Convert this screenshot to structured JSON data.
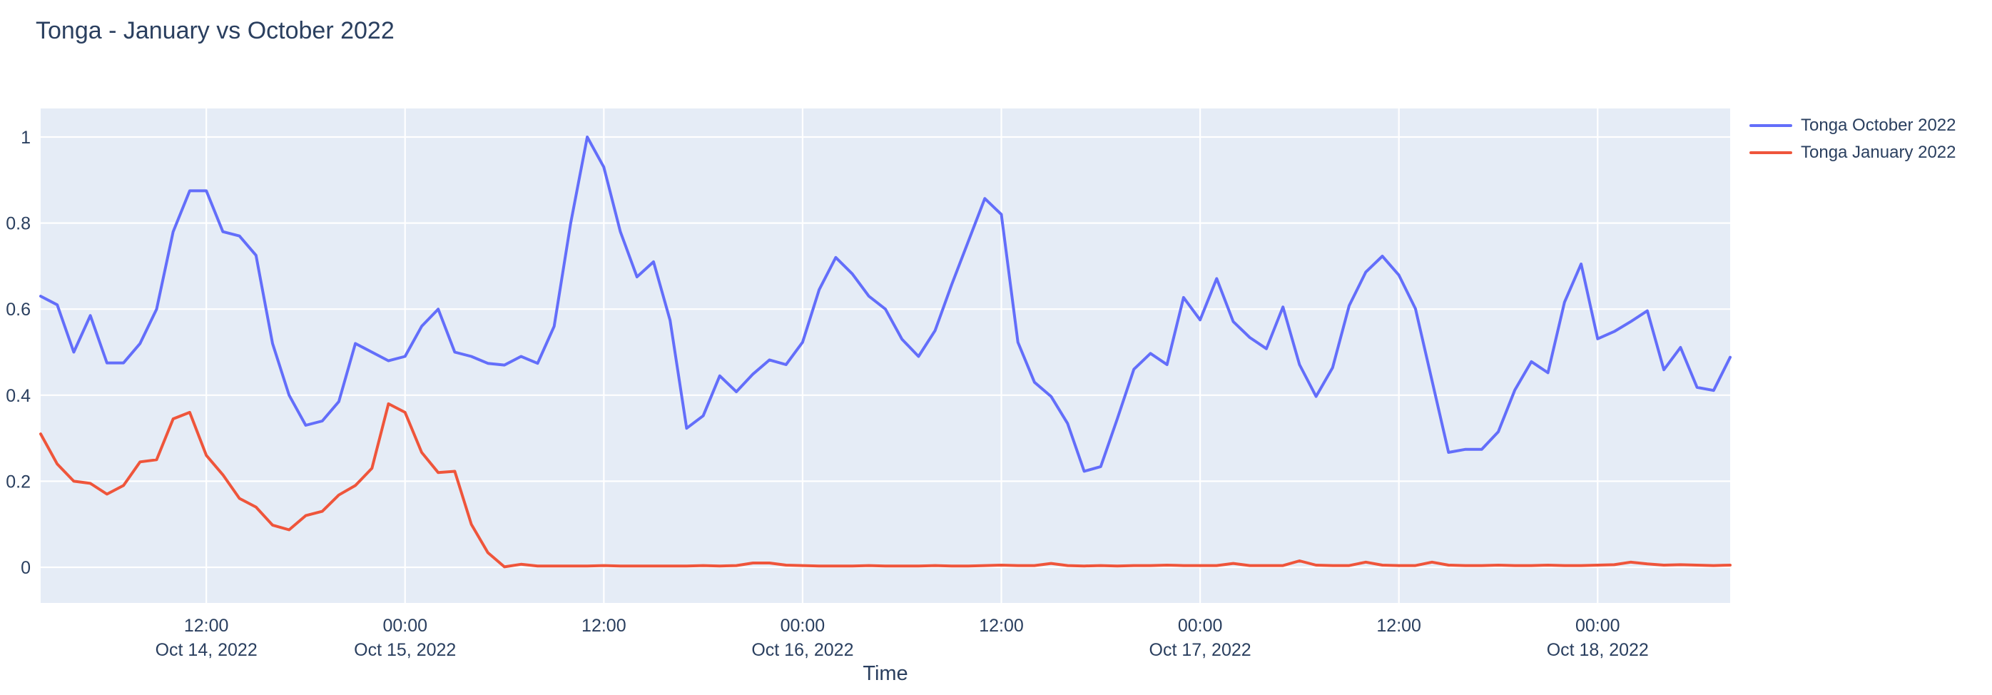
{
  "figure": {
    "title": "Tonga - January vs October 2022",
    "x_axis_title": "Time"
  },
  "legend": {
    "items": [
      {
        "label": "Tonga October 2022",
        "color": "#636EFA"
      },
      {
        "label": "Tonga January 2022",
        "color": "#EF553B"
      }
    ]
  },
  "colors": {
    "page_background": "#FFFFFF",
    "plot_background": "#E5ECF6",
    "gridline": "#FFFFFF",
    "text": "#2A3F5F",
    "series_october": "#636EFA",
    "series_january": "#EF553B"
  },
  "chart_data": {
    "type": "line",
    "title": "Tonga - January vs October 2022",
    "xlabel": "Time",
    "ylabel": "",
    "x_unit": "hourly samples",
    "x_start": "2022-10-14 02:00",
    "x_end": "2022-10-18 08:00",
    "total_hours": 102,
    "ylim": [
      -0.083,
      1.066
    ],
    "yticks": [
      0,
      0.2,
      0.4,
      0.6,
      0.8,
      1
    ],
    "grid": true,
    "legend_position": "top-right-outside",
    "xticks": [
      {
        "hour_offset": 10,
        "time": "12:00",
        "date": "Oct 14, 2022"
      },
      {
        "hour_offset": 22,
        "time": "00:00",
        "date": "Oct 15, 2022"
      },
      {
        "hour_offset": 34,
        "time": "12:00",
        "date": ""
      },
      {
        "hour_offset": 46,
        "time": "00:00",
        "date": "Oct 16, 2022"
      },
      {
        "hour_offset": 58,
        "time": "12:00",
        "date": ""
      },
      {
        "hour_offset": 70,
        "time": "00:00",
        "date": "Oct 17, 2022"
      },
      {
        "hour_offset": 82,
        "time": "12:00",
        "date": ""
      },
      {
        "hour_offset": 94,
        "time": "00:00",
        "date": "Oct 18, 2022"
      }
    ],
    "series": [
      {
        "name": "Tonga October 2022",
        "color": "#636EFA",
        "values": [
          0.63,
          0.61,
          0.5,
          0.585,
          0.475,
          0.475,
          0.52,
          0.6,
          0.78,
          0.875,
          0.875,
          0.78,
          0.77,
          0.725,
          0.52,
          0.4,
          0.33,
          0.34,
          0.385,
          0.52,
          0.5,
          0.48,
          0.49,
          0.56,
          0.6,
          0.5,
          0.49,
          0.474,
          0.47,
          0.49,
          0.474,
          0.56,
          0.8,
          1.0,
          0.93,
          0.78,
          0.675,
          0.71,
          0.574,
          0.323,
          0.352,
          0.445,
          0.408,
          0.449,
          0.482,
          0.471,
          0.523,
          0.645,
          0.72,
          0.682,
          0.63,
          0.6,
          0.53,
          0.49,
          0.55,
          0.657,
          0.757,
          0.857,
          0.82,
          0.523,
          0.43,
          0.397,
          0.334,
          0.223,
          0.234,
          0.345,
          0.46,
          0.497,
          0.471,
          0.627,
          0.575,
          0.671,
          0.571,
          0.534,
          0.508,
          0.605,
          0.471,
          0.397,
          0.464,
          0.608,
          0.686,
          0.723,
          0.679,
          0.601,
          0.434,
          0.267,
          0.274,
          0.274,
          0.315,
          0.412,
          0.478,
          0.452,
          0.616,
          0.705,
          0.531,
          0.548,
          0.571,
          0.596,
          0.459,
          0.511,
          0.418,
          0.411,
          0.488
        ]
      },
      {
        "name": "Tonga January 2022",
        "color": "#EF553B",
        "values": [
          0.31,
          0.24,
          0.2,
          0.195,
          0.17,
          0.19,
          0.245,
          0.25,
          0.345,
          0.36,
          0.26,
          0.215,
          0.16,
          0.14,
          0.098,
          0.087,
          0.12,
          0.13,
          0.168,
          0.19,
          0.23,
          0.38,
          0.36,
          0.267,
          0.22,
          0.223,
          0.1,
          0.034,
          0.001,
          0.007,
          0.003,
          0.003,
          0.003,
          0.003,
          0.004,
          0.003,
          0.003,
          0.003,
          0.003,
          0.003,
          0.004,
          0.003,
          0.004,
          0.01,
          0.01,
          0.005,
          0.004,
          0.003,
          0.003,
          0.003,
          0.004,
          0.003,
          0.003,
          0.003,
          0.004,
          0.003,
          0.003,
          0.004,
          0.005,
          0.004,
          0.004,
          0.009,
          0.004,
          0.003,
          0.004,
          0.003,
          0.004,
          0.004,
          0.005,
          0.004,
          0.004,
          0.004,
          0.009,
          0.004,
          0.004,
          0.004,
          0.015,
          0.005,
          0.004,
          0.004,
          0.012,
          0.005,
          0.004,
          0.004,
          0.012,
          0.005,
          0.004,
          0.004,
          0.005,
          0.004,
          0.004,
          0.005,
          0.004,
          0.004,
          0.005,
          0.006,
          0.012,
          0.008,
          0.005,
          0.006,
          0.005,
          0.004,
          0.005
        ]
      }
    ]
  }
}
